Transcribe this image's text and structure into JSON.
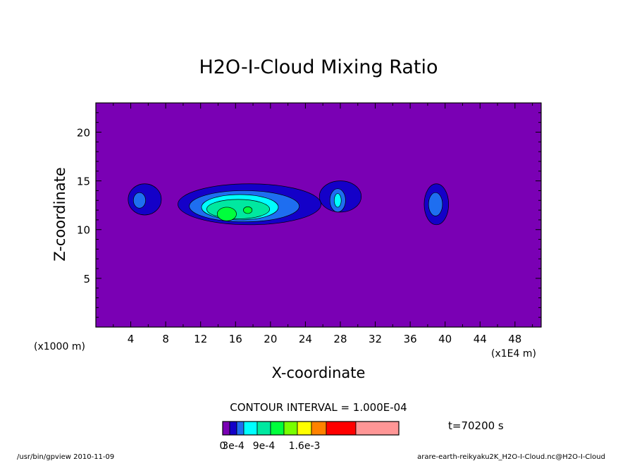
{
  "chart_data": {
    "type": "heatmap",
    "title": "H2O-I-Cloud Mixing Ratio",
    "xlabel": "X-coordinate",
    "ylabel": "Z-coordinate",
    "x_unit_left": "(x1000 m)",
    "x_unit_right": "(x1E4 m)",
    "xlim": [
      0,
      51
    ],
    "ylim": [
      0,
      23
    ],
    "x_ticks": [
      4,
      8,
      12,
      16,
      20,
      24,
      28,
      32,
      36,
      40,
      44,
      48
    ],
    "y_ticks": [
      5,
      10,
      15,
      20
    ],
    "background_color": "#7a00b4",
    "contour_interval": "CONTOUR INTERVAL = 1.000E-04",
    "time_label": "t=70200 s",
    "colorbar": {
      "colors": [
        "#7a00b4",
        "#1400c8",
        "#1e6ef0",
        "#00ffff",
        "#00e8a0",
        "#00ff3c",
        "#78ff00",
        "#ffff00",
        "#ff8200",
        "#ff0000",
        "#ff9696"
      ],
      "labels": [
        "0",
        "3e-4",
        "9e-4",
        "1.6e-3"
      ],
      "label_positions": [
        0,
        1.5,
        4.5,
        7.5
      ]
    },
    "regions": [
      {
        "level": 1,
        "cx": 5.6,
        "cy": 13.1,
        "rx": 1.9,
        "ry": 1.6
      },
      {
        "level": 2,
        "cx": 5.0,
        "cy": 13.0,
        "rx": 0.7,
        "ry": 0.8
      },
      {
        "level": 1,
        "cx": 17.6,
        "cy": 12.6,
        "rx": 8.2,
        "ry": 2.1
      },
      {
        "level": 2,
        "cx": 17.0,
        "cy": 12.4,
        "rx": 6.3,
        "ry": 1.6
      },
      {
        "level": 3,
        "cx": 16.5,
        "cy": 12.3,
        "rx": 4.4,
        "ry": 1.3
      },
      {
        "level": 4,
        "cx": 16.3,
        "cy": 12.1,
        "rx": 3.6,
        "ry": 1.0
      },
      {
        "level": 5,
        "cx": 15.0,
        "cy": 11.6,
        "rx": 1.1,
        "ry": 0.7
      },
      {
        "level": 5,
        "cx": 17.4,
        "cy": 12.0,
        "rx": 0.5,
        "ry": 0.35
      },
      {
        "level": 1,
        "cx": 28.0,
        "cy": 13.4,
        "rx": 2.4,
        "ry": 1.6
      },
      {
        "level": 2,
        "cx": 27.7,
        "cy": 13.0,
        "rx": 0.9,
        "ry": 1.2
      },
      {
        "level": 3,
        "cx": 27.7,
        "cy": 13.0,
        "rx": 0.4,
        "ry": 0.7
      },
      {
        "level": 1,
        "cx": 39.0,
        "cy": 12.6,
        "rx": 1.4,
        "ry": 2.1
      },
      {
        "level": 2,
        "cx": 38.9,
        "cy": 12.6,
        "rx": 0.8,
        "ry": 1.2
      }
    ]
  },
  "footer": {
    "left": "/usr/bin/gpview   2010-11-09",
    "right": "arare-earth-reikyaku2K_H2O-I-Cloud.nc@H2O-I-Cloud"
  }
}
